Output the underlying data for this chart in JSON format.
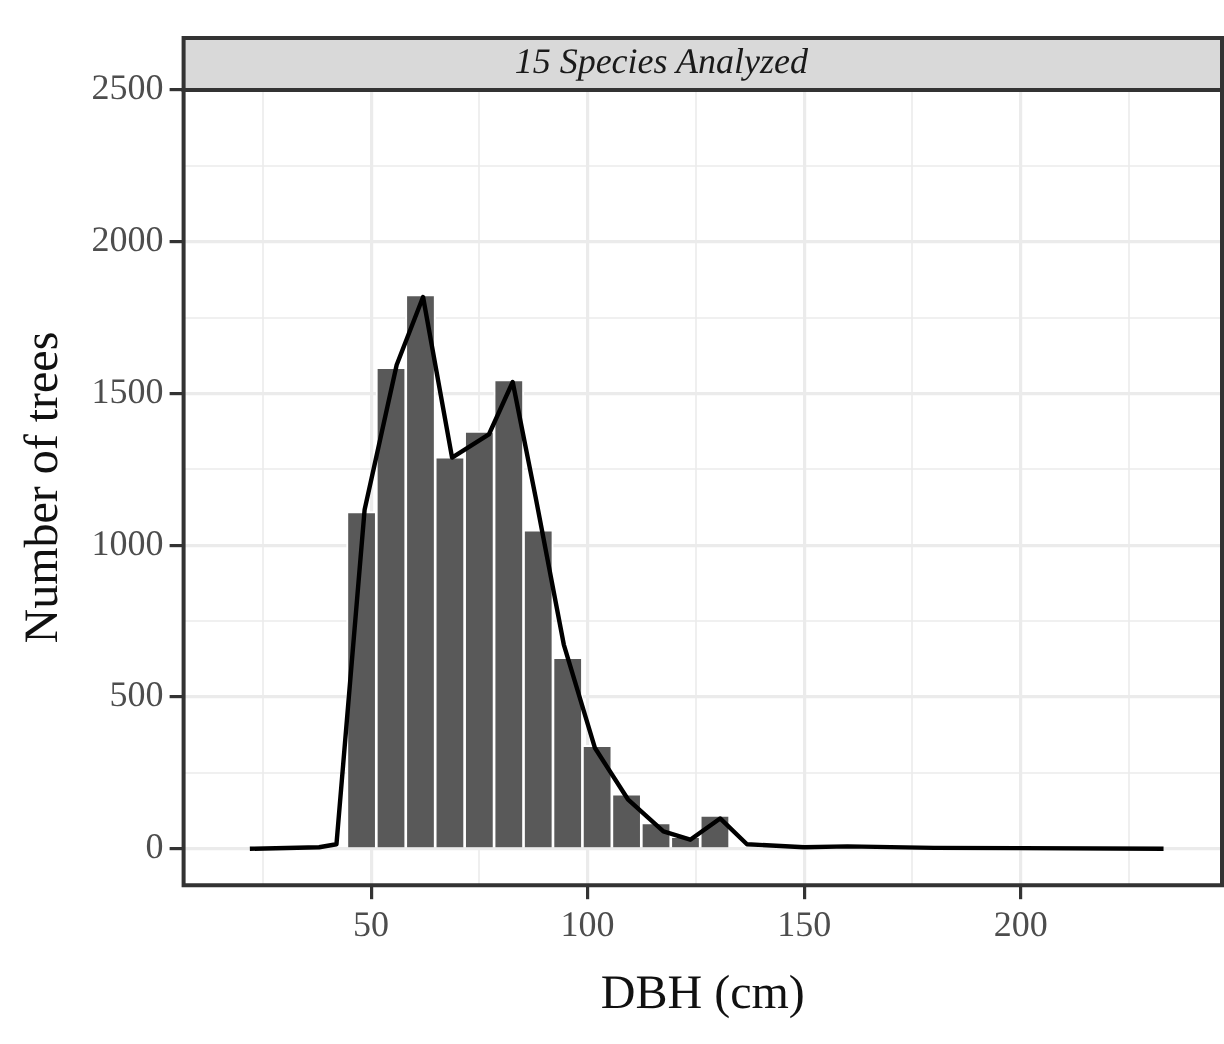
{
  "chart_data": {
    "type": "histogram",
    "title": "15 Species Analyzed",
    "xlabel": "DBH (cm)",
    "ylabel": "Number of trees",
    "series": [
      {
        "color": "#595959",
        "bins": [
          44.4,
          51.2,
          58,
          64.8,
          71.6,
          78.4,
          85.2,
          92,
          98.8,
          105.6,
          112.4,
          119.2,
          126,
          132.8
        ],
        "values": [
          1110,
          1585,
          1825,
          1290,
          1375,
          1545,
          1050,
          630,
          340,
          180,
          85,
          40,
          110
        ]
      },
      {
        "type": "line",
        "color": "#000000",
        "x": [
          22,
          38,
          42,
          48.5,
          55.9,
          62,
          68.7,
          77.2,
          82.7,
          88,
          94.5,
          101.7,
          109.3,
          117.5,
          123.7,
          130.6,
          136.8,
          150,
          160,
          180,
          200,
          233
        ],
        "values": [
          0,
          5,
          15,
          1117,
          1594,
          1818,
          1289,
          1365,
          1538,
          1158,
          673,
          332,
          163,
          57,
          30,
          100,
          15,
          5,
          8,
          3,
          2,
          0
        ]
      }
    ],
    "xlim": [
      6.7,
      246.5
    ],
    "ylim": [
      -120,
      2500
    ],
    "xticks": [
      {
        "value": 25,
        "label": null
      },
      50,
      {
        "value": 75,
        "label": null
      },
      100,
      {
        "value": 125,
        "label": null
      },
      150,
      {
        "value": 175,
        "label": null
      },
      200,
      {
        "value": 225,
        "label": null
      }
    ],
    "yticks": [
      0,
      {
        "value": 250,
        "label": null
      },
      500,
      {
        "value": 750,
        "label": null
      },
      1000,
      {
        "value": 1250,
        "label": null
      },
      1500,
      {
        "value": 1750,
        "label": null
      },
      2000,
      {
        "value": 2250,
        "label": null
      },
      2500
    ],
    "grid": true,
    "legend": false,
    "marker": "none",
    "line_style": "solid"
  }
}
